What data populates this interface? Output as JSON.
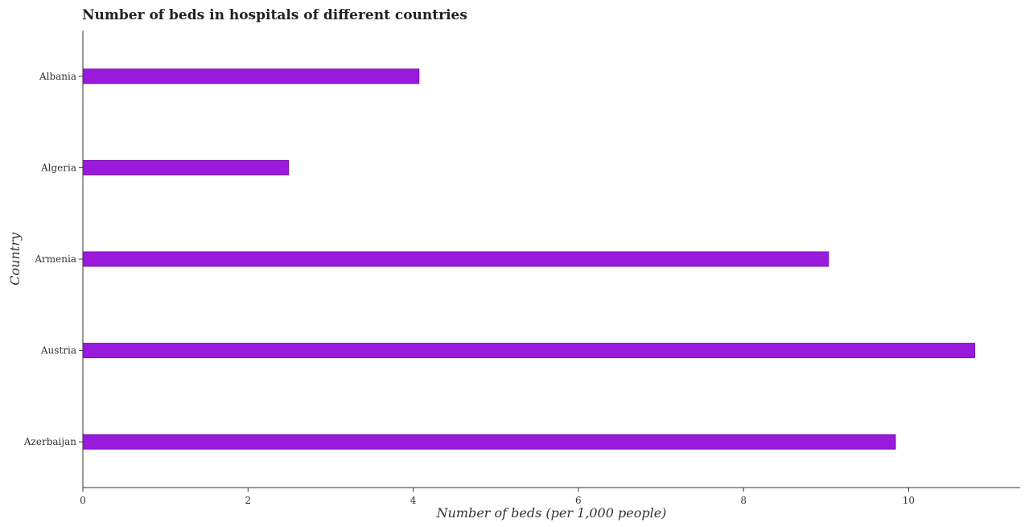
{
  "chart_data": {
    "type": "bar",
    "orientation": "horizontal",
    "title": "Number of beds in hospitals of different countries",
    "xlabel": "Number of beds (per 1,000 people)",
    "ylabel": "Country",
    "categories": [
      "Albania",
      "Algeria",
      "Armenia",
      "Austria",
      "Azerbaijan"
    ],
    "values": [
      4.07,
      2.49,
      9.03,
      10.8,
      9.84
    ],
    "xlim": [
      0,
      11.35
    ],
    "xticks": [
      0,
      2,
      4,
      6,
      8,
      10
    ],
    "xtick_labels": [
      "0",
      "2",
      "4",
      "6",
      "8",
      "10"
    ],
    "grid": false,
    "legend": "none",
    "bar_color": "#9a1adc",
    "bar_edge_color": "#7a10b4"
  }
}
